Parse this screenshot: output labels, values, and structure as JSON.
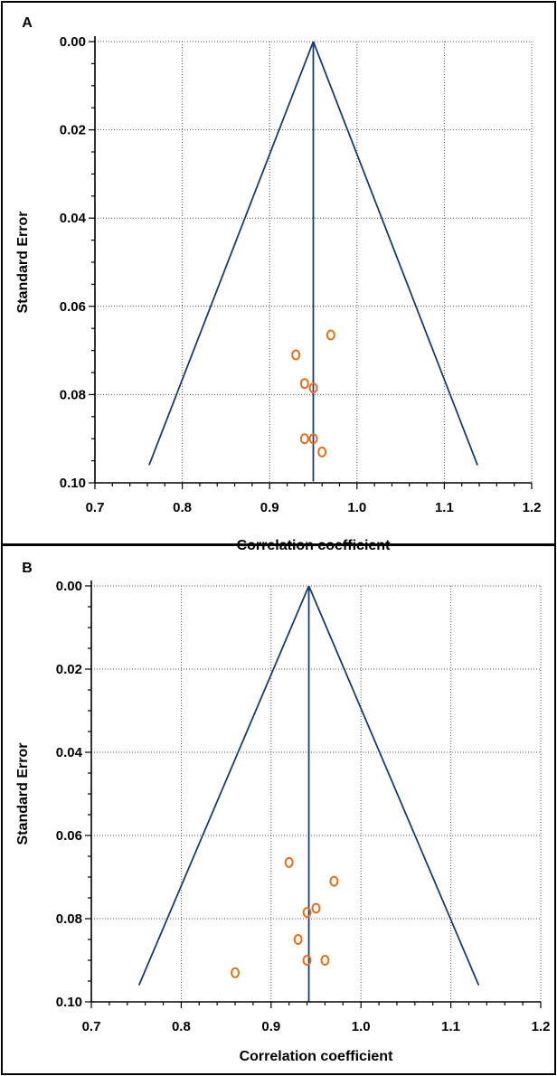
{
  "chart_data": [
    {
      "type": "scatter",
      "panel_label": "A",
      "xlabel": "Correlation coefficient",
      "ylabel": "Standard Error",
      "xlim": [
        0.7,
        1.2
      ],
      "ylim": [
        0.0,
        0.1
      ],
      "y_inverted": true,
      "xticks": [
        "0.7",
        "0.8",
        "0.9",
        "1.0",
        "1.1",
        "1.2"
      ],
      "yticks": [
        "0.00",
        "0.02",
        "0.04",
        "0.06",
        "0.08",
        "0.10"
      ],
      "grid": true,
      "funnel": {
        "center": 0.95,
        "apex_se": 0.0,
        "base_se": 0.096,
        "left_x": 0.762,
        "right_x": 1.138
      },
      "points": [
        {
          "x": 0.97,
          "y": 0.0665
        },
        {
          "x": 0.93,
          "y": 0.071
        },
        {
          "x": 0.94,
          "y": 0.0775
        },
        {
          "x": 0.95,
          "y": 0.0785
        },
        {
          "x": 0.94,
          "y": 0.09
        },
        {
          "x": 0.95,
          "y": 0.09
        },
        {
          "x": 0.96,
          "y": 0.093
        }
      ],
      "marker_color": "#e07020",
      "line_color": "#1a3d6e"
    },
    {
      "type": "scatter",
      "panel_label": "B",
      "xlabel": "Correlation coefficient",
      "ylabel": "Standard Error",
      "xlim": [
        0.7,
        1.2
      ],
      "ylim": [
        0.0,
        0.1
      ],
      "y_inverted": true,
      "xticks": [
        "0.7",
        "0.8",
        "0.9",
        "1.0",
        "1.1",
        "1.2"
      ],
      "yticks": [
        "0.00",
        "0.02",
        "0.04",
        "0.06",
        "0.08",
        "0.10"
      ],
      "grid": true,
      "funnel": {
        "center": 0.942,
        "apex_se": 0.0,
        "base_se": 0.096,
        "left_x": 0.753,
        "right_x": 1.131
      },
      "points": [
        {
          "x": 0.92,
          "y": 0.0665
        },
        {
          "x": 0.97,
          "y": 0.071
        },
        {
          "x": 0.95,
          "y": 0.0775
        },
        {
          "x": 0.94,
          "y": 0.0785
        },
        {
          "x": 0.93,
          "y": 0.085
        },
        {
          "x": 0.94,
          "y": 0.09
        },
        {
          "x": 0.96,
          "y": 0.09
        },
        {
          "x": 0.86,
          "y": 0.093
        }
      ],
      "marker_color": "#e07020",
      "line_color": "#1a3d6e"
    }
  ]
}
